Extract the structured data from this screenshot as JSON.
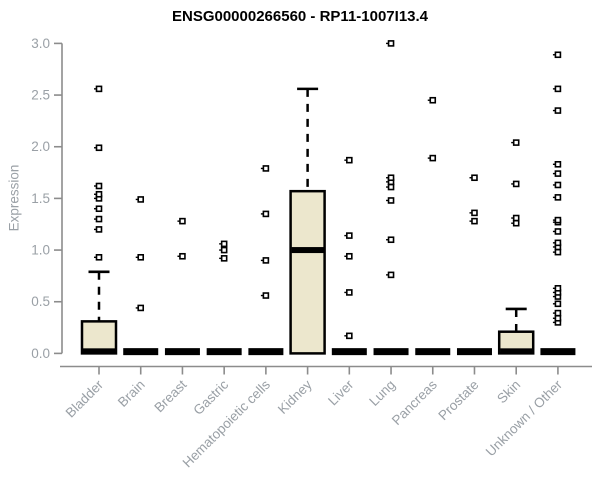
{
  "chart_data": {
    "type": "boxplot",
    "title": "ENSG00000266560 - RP11-1007I13.4",
    "ylabel": "Expression",
    "xlabel": "",
    "ylim": [
      0.0,
      3.0
    ],
    "yticks": [
      "0.0",
      "0.5",
      "1.0",
      "1.5",
      "2.0",
      "2.5",
      "3.0"
    ],
    "grid": false,
    "legend": "none",
    "colors": {
      "box_fill": "#ece7cd",
      "box_stroke": "#000000",
      "axis_line": "#8c8c8c",
      "tick_label": "#9aa0a6",
      "title": "#000000",
      "background": "#ffffff"
    },
    "categories": [
      "Bladder",
      "Brain",
      "Breast",
      "Gastric",
      "Hematopoietic cells",
      "Kidney",
      "Liver",
      "Lung",
      "Pancreas",
      "Prostate",
      "Skin",
      "Unknown / Other"
    ],
    "series": [
      {
        "category": "Bladder",
        "q1": 0.0,
        "median": 0.02,
        "q3": 0.31,
        "whisker_low": 0.0,
        "whisker_high": 0.79,
        "outliers": [
          0.93,
          1.2,
          1.3,
          1.4,
          1.5,
          1.54,
          1.62,
          1.99,
          2.56
        ]
      },
      {
        "category": "Brain",
        "q1": 0.0,
        "median": 0.02,
        "q3": 0.03,
        "whisker_low": 0.0,
        "whisker_high": 0.03,
        "outliers": [
          0.44,
          0.93,
          1.49
        ]
      },
      {
        "category": "Breast",
        "q1": 0.0,
        "median": 0.02,
        "q3": 0.03,
        "whisker_low": 0.0,
        "whisker_high": 0.03,
        "outliers": [
          0.94,
          1.28
        ]
      },
      {
        "category": "Gastric",
        "q1": 0.0,
        "median": 0.02,
        "q3": 0.03,
        "whisker_low": 0.0,
        "whisker_high": 0.03,
        "outliers": [
          0.92,
          1.0,
          1.06
        ]
      },
      {
        "category": "Hematopoietic cells",
        "q1": 0.0,
        "median": 0.02,
        "q3": 0.03,
        "whisker_low": 0.0,
        "whisker_high": 0.03,
        "outliers": [
          0.56,
          0.9,
          1.35,
          1.79
        ]
      },
      {
        "category": "Kidney",
        "q1": 0.0,
        "median": 1.0,
        "q3": 1.57,
        "whisker_low": 0.0,
        "whisker_high": 2.56,
        "outliers": []
      },
      {
        "category": "Liver",
        "q1": 0.0,
        "median": 0.02,
        "q3": 0.03,
        "whisker_low": 0.0,
        "whisker_high": 0.03,
        "outliers": [
          0.17,
          0.59,
          0.94,
          1.14,
          1.87
        ]
      },
      {
        "category": "Lung",
        "q1": 0.0,
        "median": 0.02,
        "q3": 0.03,
        "whisker_low": 0.0,
        "whisker_high": 0.03,
        "outliers": [
          0.76,
          1.1,
          1.48,
          1.61,
          1.66,
          1.7,
          3.0
        ]
      },
      {
        "category": "Pancreas",
        "q1": 0.0,
        "median": 0.02,
        "q3": 0.03,
        "whisker_low": 0.0,
        "whisker_high": 0.03,
        "outliers": [
          1.89,
          2.45
        ]
      },
      {
        "category": "Prostate",
        "q1": 0.0,
        "median": 0.02,
        "q3": 0.03,
        "whisker_low": 0.0,
        "whisker_high": 0.03,
        "outliers": [
          1.28,
          1.36,
          1.7
        ]
      },
      {
        "category": "Skin",
        "q1": 0.0,
        "median": 0.02,
        "q3": 0.21,
        "whisker_low": 0.0,
        "whisker_high": 0.43,
        "outliers": [
          1.26,
          1.31,
          1.64,
          2.04
        ]
      },
      {
        "category": "Unknown / Other",
        "q1": 0.0,
        "median": 0.02,
        "q3": 0.03,
        "whisker_low": 0.0,
        "whisker_high": 0.03,
        "outliers": [
          0.3,
          0.34,
          0.39,
          0.48,
          0.55,
          0.59,
          0.63,
          0.98,
          1.03,
          1.07,
          1.18,
          1.27,
          1.29,
          1.51,
          1.63,
          1.74,
          1.83,
          2.35,
          2.56,
          2.89
        ]
      }
    ]
  }
}
